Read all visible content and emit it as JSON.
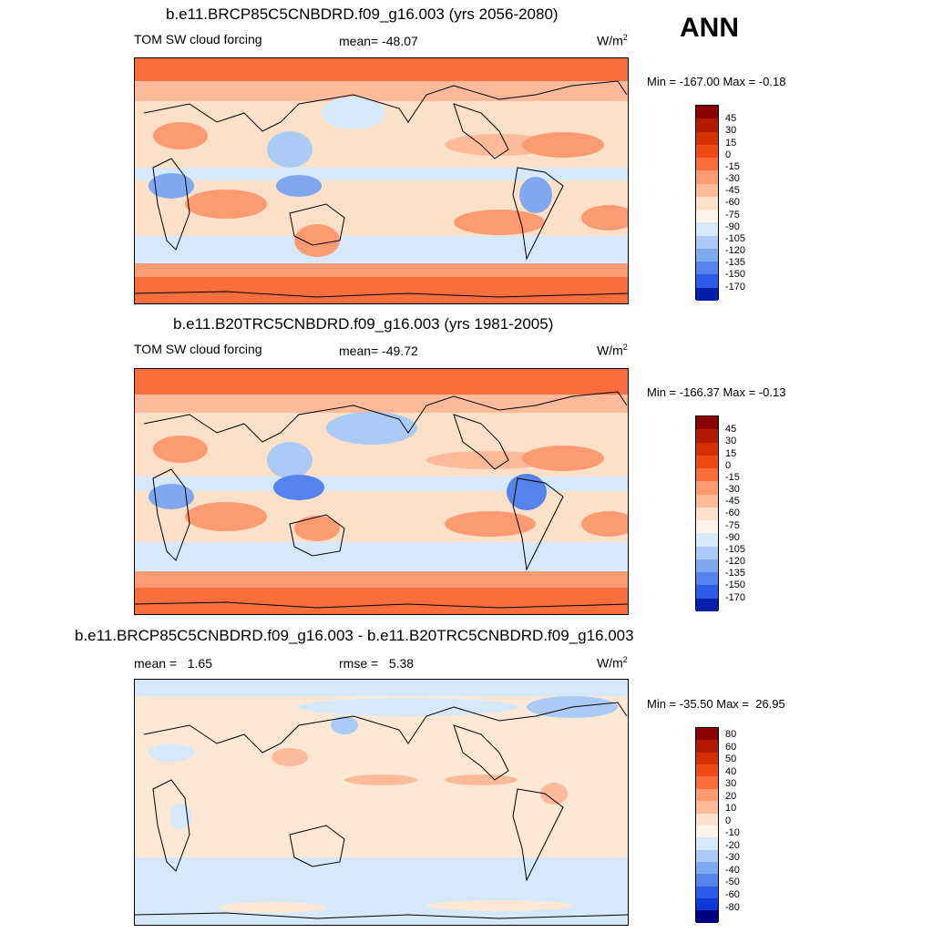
{
  "season": "ANN",
  "panels": [
    {
      "title": "b.e11.BRCP85C5CNBDRD.f09_g16.003 (yrs 2056-2080)",
      "left_label": "TOM SW cloud forcing",
      "center_label": "mean= -48.07",
      "right_label": "W/m",
      "units_sup": "2",
      "minmax": "Min = -167.00 Max =  -0.18",
      "colorbar": [
        "45",
        "30",
        "15",
        "0",
        "-15",
        "-30",
        "-45",
        "-60",
        "-75",
        "-90",
        "-105",
        "-120",
        "-135",
        "-150",
        "-170"
      ]
    },
    {
      "title": "b.e11.B20TRC5CNBDRD.f09_g16.003 (yrs 1981-2005)",
      "left_label": "TOM SW cloud forcing",
      "center_label": "mean= -49.72",
      "right_label": "W/m",
      "units_sup": "2",
      "minmax": "Min = -166.37 Max =  -0.13",
      "colorbar": [
        "45",
        "30",
        "15",
        "0",
        "-15",
        "-30",
        "-45",
        "-60",
        "-75",
        "-90",
        "-105",
        "-120",
        "-135",
        "-150",
        "-170"
      ]
    },
    {
      "title": "b.e11.BRCP85C5CNBDRD.f09_g16.003 - b.e11.B20TRC5CNBDRD.f09_g16.003",
      "left_label": "mean =   1.65",
      "center_label": "rmse =   5.38",
      "right_label": "W/m",
      "units_sup": "2",
      "minmax": "Min = -35.50 Max =  26.95",
      "colorbar": [
        "80",
        "60",
        "50",
        "40",
        "30",
        "20",
        "10",
        "0",
        "-10",
        "-20",
        "-30",
        "-40",
        "-50",
        "-60",
        "-80"
      ]
    }
  ],
  "colors": {
    "palette": [
      "#8b0000",
      "#b31b00",
      "#d73000",
      "#f04a14",
      "#fa6e3e",
      "#fc9a72",
      "#fdbb9c",
      "#fde0c8",
      "#fff4ea",
      "#d6e8fb",
      "#a9cbf5",
      "#7fa8f0",
      "#5682ec",
      "#2c5be8",
      "#0f3ad6",
      "#001ea8",
      "#000080"
    ],
    "ocean_base": "#fde0c8",
    "diff_base": "#fde8d6"
  }
}
